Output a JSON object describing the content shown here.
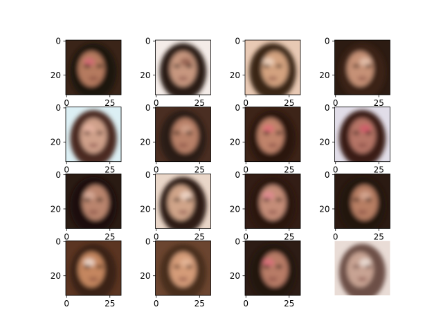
{
  "chart_data": {
    "type": "image-grid",
    "rows": 4,
    "cols": 4,
    "image_size": [
      32,
      32
    ],
    "xticks": [
      0,
      25
    ],
    "yticks": [
      0,
      20
    ],
    "axis_hidden_panel": 16,
    "panels": [
      {
        "bg": "#3a2418",
        "hair": "#1f130b",
        "skin": "#b57a5e",
        "accent": "#d86a78"
      },
      {
        "bg": "#f4ece8",
        "hair": "#2a1a12",
        "skin": "#c7977f",
        "accent": "#8f5a4a"
      },
      {
        "bg": "#e8c9b4",
        "hair": "#3b2516",
        "skin": "#d3a27f",
        "accent": "#f1d8c5"
      },
      {
        "bg": "#2c1b12",
        "hair": "#3a2114",
        "skin": "#c69176",
        "accent": "#e7c6b3"
      },
      {
        "bg": "#dceff4",
        "hair": "#4c2c20",
        "skin": "#cfa08a",
        "accent": "#e8b5a4"
      },
      {
        "bg": "#4a2e22",
        "hair": "#2b1a12",
        "skin": "#b88067",
        "accent": "#d2a38d"
      },
      {
        "bg": "#3d2418",
        "hair": "#2a140c",
        "skin": "#c0836a",
        "accent": "#e36f7b"
      },
      {
        "bg": "#e1dde8",
        "hair": "#3b1e19",
        "skin": "#b57566",
        "accent": "#d75a6c"
      },
      {
        "bg": "#2a1b13",
        "hair": "#1c110b",
        "skin": "#b9846d",
        "accent": "#dcb09d"
      },
      {
        "bg": "#e9d6c8",
        "hair": "#2f1d14",
        "skin": "#d0a489",
        "accent": "#f3dccf"
      },
      {
        "bg": "#331d15",
        "hair": "#2a140d",
        "skin": "#c58d78",
        "accent": "#e38b95"
      },
      {
        "bg": "#2b1a12",
        "hair": "#21120b",
        "skin": "#b77e63",
        "accent": "#d9ad97"
      },
      {
        "bg": "#5b3522",
        "hair": "#3a2014",
        "skin": "#c4865f",
        "accent": "#f2e1d8"
      },
      {
        "bg": "#6b4530",
        "hair": "#4a2d1c",
        "skin": "#d49b78",
        "accent": "#e6b99b"
      },
      {
        "bg": "#2d1c15",
        "hair": "#24140e",
        "skin": "#b87b66",
        "accent": "#e0707e"
      },
      {
        "bg": "#e9dcd6",
        "hair": "#6d4f47",
        "skin": "#c8a393",
        "accent": "#efe3dd"
      }
    ]
  }
}
